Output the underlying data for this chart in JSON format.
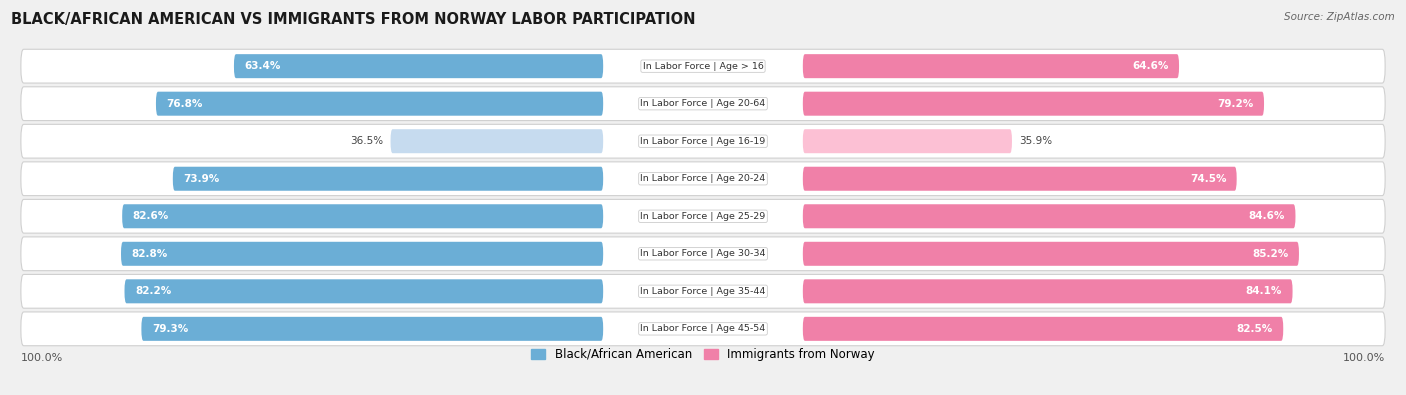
{
  "title": "BLACK/AFRICAN AMERICAN VS IMMIGRANTS FROM NORWAY LABOR PARTICIPATION",
  "source": "Source: ZipAtlas.com",
  "categories": [
    "In Labor Force | Age > 16",
    "In Labor Force | Age 20-64",
    "In Labor Force | Age 16-19",
    "In Labor Force | Age 20-24",
    "In Labor Force | Age 25-29",
    "In Labor Force | Age 30-34",
    "In Labor Force | Age 35-44",
    "In Labor Force | Age 45-54"
  ],
  "black_values": [
    63.4,
    76.8,
    36.5,
    73.9,
    82.6,
    82.8,
    82.2,
    79.3
  ],
  "norway_values": [
    64.6,
    79.2,
    35.9,
    74.5,
    84.6,
    85.2,
    84.1,
    82.5
  ],
  "black_color": "#6BAED6",
  "black_color_light": "#C6DBEF",
  "norway_color": "#F080A8",
  "norway_color_light": "#FCC0D4",
  "background_color": "#f0f0f0",
  "row_bg_color": "#ffffff",
  "row_bg_alt": "#f7f7f7",
  "max_value": 100.0,
  "legend_label_black": "Black/African American",
  "legend_label_norway": "Immigrants from Norway",
  "low_threshold": 50
}
